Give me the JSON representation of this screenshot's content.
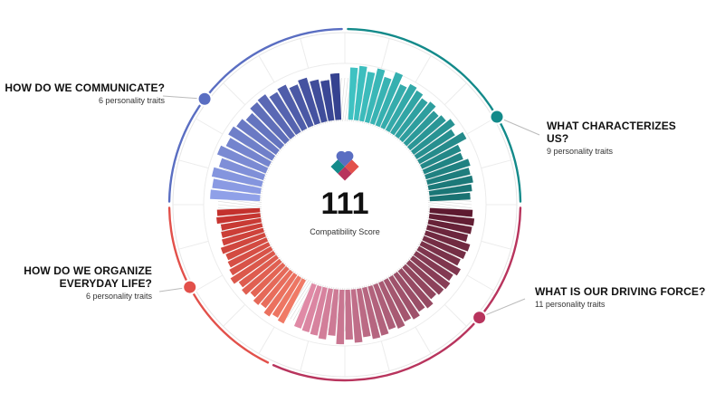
{
  "score": {
    "value": "111",
    "label": "Compatibility Score"
  },
  "groups": [
    {
      "title": "HOW DO WE COMMUNICATE?",
      "subtitle": "6 personality traits",
      "color": "#5a6ec2"
    },
    {
      "title": "WHAT CHARACTERIZES US?",
      "subtitle": "9 personality traits",
      "color": "#138a8a"
    },
    {
      "title": "WHAT IS OUR DRIVING FORCE?",
      "subtitle": "11 personality traits",
      "color": "#b8345d"
    },
    {
      "title": "HOW DO WE ORGANIZE\nEVERYDAY LIFE?",
      "subtitle": "6 personality traits",
      "color": "#e2504a"
    }
  ],
  "chart_data": {
    "type": "radial-bar",
    "score": 111,
    "score_label": "Compatibility Score",
    "groups": [
      {
        "name": "HOW DO WE COMMUNICATE?",
        "traits": 6,
        "color": "#5a6ec2",
        "values": [
          0.86,
          0.84,
          0.88,
          0.8,
          0.9,
          0.82,
          0.88,
          0.84,
          0.78,
          0.86,
          0.88,
          0.8,
          0.84,
          0.76,
          0.82,
          0.74,
          0.7,
          0.8
        ]
      },
      {
        "name": "WHAT CHARACTERIZES US?",
        "traits": 9,
        "color": "#138a8a",
        "values": [
          0.9,
          0.94,
          0.86,
          0.95,
          0.84,
          0.98,
          0.82,
          0.9,
          0.86,
          0.8,
          0.84,
          0.76,
          0.8,
          0.88,
          0.78,
          0.92,
          0.74,
          0.72,
          0.8,
          0.76,
          0.78,
          0.74,
          0.7
        ]
      },
      {
        "name": "WHAT IS OUR DRIVING FORCE?",
        "traits": 11,
        "color": "#b8345d",
        "values": [
          0.74,
          0.78,
          0.76,
          0.72,
          0.8,
          0.78,
          0.74,
          0.82,
          0.76,
          0.8,
          0.78,
          0.74,
          0.82,
          0.78,
          0.84,
          0.8,
          0.86,
          0.82,
          0.88,
          0.9,
          0.84,
          0.92,
          0.86,
          0.94,
          0.8,
          0.88,
          0.84,
          0.82,
          0.8
        ]
      },
      {
        "name": "HOW DO WE ORGANIZE EVERYDAY LIFE?",
        "traits": 6,
        "color": "#e2504a",
        "values": [
          0.84,
          0.8,
          0.86,
          0.78,
          0.82,
          0.76,
          0.84,
          0.8,
          0.88,
          0.82,
          0.78,
          0.76,
          0.8,
          0.74,
          0.72,
          0.7,
          0.76,
          0.74
        ]
      }
    ]
  }
}
